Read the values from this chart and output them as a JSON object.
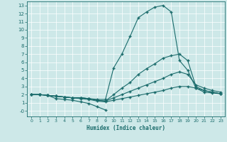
{
  "title": "",
  "xlabel": "Humidex (Indice chaleur)",
  "ylabel": "",
  "bg_color": "#cde8e8",
  "grid_color": "#b8d8d8",
  "line_color": "#1a6b6b",
  "xlim": [
    -0.5,
    23.5
  ],
  "ylim": [
    -0.7,
    13.5
  ],
  "xticks": [
    0,
    1,
    2,
    3,
    4,
    5,
    6,
    7,
    8,
    9,
    10,
    11,
    12,
    13,
    14,
    15,
    16,
    17,
    18,
    19,
    20,
    21,
    22,
    23
  ],
  "yticks": [
    0,
    1,
    2,
    3,
    4,
    5,
    6,
    7,
    8,
    9,
    10,
    11,
    12,
    13
  ],
  "line_peak_x": [
    0,
    1,
    2,
    3,
    4,
    5,
    6,
    7,
    8,
    9,
    10,
    11,
    12,
    13,
    14,
    15,
    16,
    17,
    18,
    19,
    20,
    21,
    22,
    23
  ],
  "line_peak_y": [
    2.0,
    2.0,
    1.9,
    1.8,
    1.7,
    1.6,
    1.6,
    1.5,
    1.4,
    1.4,
    5.3,
    7.0,
    9.2,
    11.5,
    12.2,
    12.8,
    13.0,
    12.2,
    6.2,
    5.0,
    2.8,
    2.3,
    2.2,
    2.1
  ],
  "line_upper_x": [
    0,
    1,
    2,
    3,
    4,
    5,
    6,
    7,
    8,
    9,
    10,
    11,
    12,
    13,
    14,
    15,
    16,
    17,
    18,
    19,
    20,
    21,
    22,
    23
  ],
  "line_upper_y": [
    2.0,
    2.0,
    1.9,
    1.8,
    1.7,
    1.6,
    1.6,
    1.5,
    1.3,
    1.2,
    2.0,
    2.8,
    3.5,
    4.5,
    5.2,
    5.8,
    6.5,
    6.8,
    7.0,
    6.2,
    3.0,
    2.5,
    2.3,
    2.1
  ],
  "line_mid_x": [
    0,
    1,
    2,
    3,
    4,
    5,
    6,
    7,
    8,
    9,
    10,
    11,
    12,
    13,
    14,
    15,
    16,
    17,
    18,
    19,
    20,
    21,
    22,
    23
  ],
  "line_mid_y": [
    2.0,
    2.0,
    1.9,
    1.8,
    1.7,
    1.6,
    1.6,
    1.5,
    1.3,
    1.2,
    1.6,
    2.0,
    2.4,
    2.8,
    3.2,
    3.6,
    4.0,
    4.5,
    4.8,
    4.5,
    3.2,
    2.8,
    2.5,
    2.3
  ],
  "line_low_x": [
    0,
    1,
    2,
    3,
    4,
    5,
    6,
    7,
    8,
    9,
    10,
    11,
    12,
    13,
    14,
    15,
    16,
    17,
    18,
    19,
    20,
    21,
    22,
    23
  ],
  "line_low_y": [
    2.0,
    2.0,
    1.9,
    1.8,
    1.7,
    1.6,
    1.5,
    1.4,
    1.2,
    1.1,
    1.3,
    1.5,
    1.7,
    1.9,
    2.1,
    2.3,
    2.5,
    2.8,
    3.0,
    3.0,
    2.8,
    2.5,
    2.3,
    2.1
  ],
  "line_bottom_x": [
    2,
    3,
    4,
    5,
    6,
    7,
    8,
    9
  ],
  "line_bottom_y": [
    1.9,
    1.5,
    1.4,
    1.3,
    1.1,
    0.9,
    0.5,
    0.1
  ],
  "marker": "+",
  "markersize": 3.5,
  "linewidth": 0.8
}
